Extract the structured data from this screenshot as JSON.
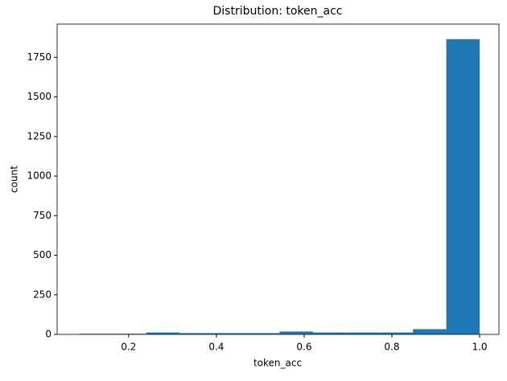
{
  "chart_data": {
    "type": "histogram",
    "title": "Distribution: token_acc",
    "x_label": "token_acc",
    "y_label": "count",
    "bins": [
      0.088,
      0.164,
      0.24,
      0.316,
      0.392,
      0.468,
      0.544,
      0.62,
      0.696,
      0.772,
      0.848,
      0.924,
      1.0
    ],
    "values": [
      4,
      4,
      12,
      8,
      8,
      8,
      18,
      12,
      12,
      12,
      33,
      1865
    ],
    "color": "#1f77b4",
    "xlim": [
      0.037,
      1.044
    ],
    "ylim": [
      0,
      1960
    ],
    "xticks": [
      0.2,
      0.4,
      0.6,
      0.8,
      {
        "value": 1,
        "label": "1.0"
      }
    ],
    "yticks": [
      0,
      250,
      500,
      750,
      1000,
      1250,
      1500,
      1750
    ]
  }
}
